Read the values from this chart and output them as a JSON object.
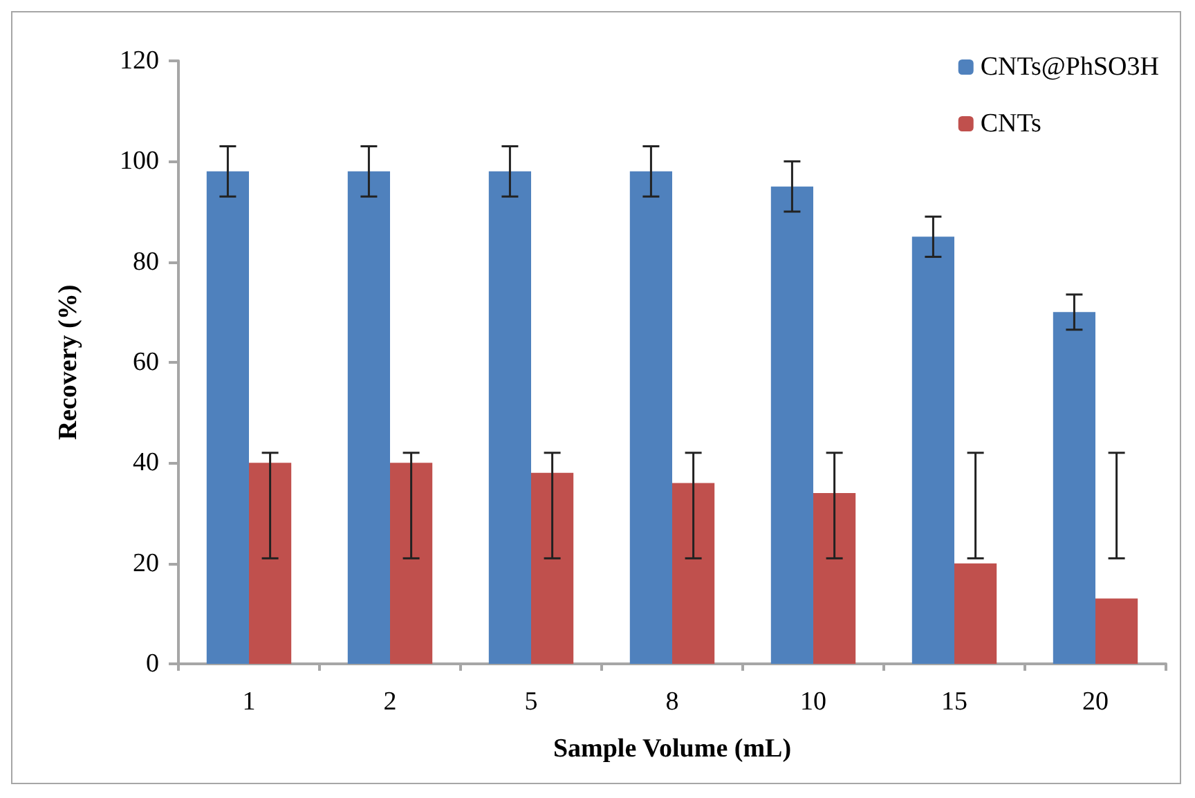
{
  "chart_data": {
    "type": "bar",
    "xlabel": "Sample Volume (mL)",
    "ylabel": "Recovery (%)",
    "categories": [
      "1",
      "2",
      "5",
      "8",
      "10",
      "15",
      "20"
    ],
    "series": [
      {
        "name": "CNTs@PhSO3H",
        "color": "#4f81bd",
        "values": [
          98,
          98,
          98,
          98,
          95,
          85,
          70
        ],
        "errors": [
          5,
          5,
          5,
          5,
          5,
          4,
          3.5
        ]
      },
      {
        "name": "CNTs",
        "color": "#c0504d",
        "values": [
          40,
          40,
          38,
          36,
          34,
          20,
          13
        ],
        "errors": [
          [
            21,
            42
          ],
          [
            21,
            42
          ],
          [
            21,
            42
          ],
          [
            21,
            42
          ],
          [
            21,
            42
          ],
          [
            21,
            42
          ],
          [
            21,
            42
          ]
        ]
      }
    ],
    "ylim": [
      0,
      120
    ],
    "yticks": [
      0,
      20,
      40,
      60,
      80,
      100,
      120
    ],
    "grid": false,
    "legend": "top right"
  }
}
